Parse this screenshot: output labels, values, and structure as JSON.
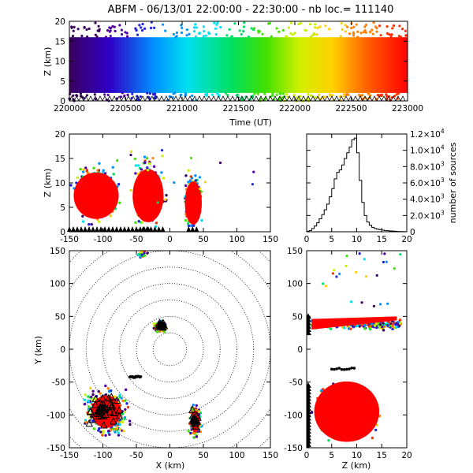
{
  "title": "ABFM - 06/13/01 22:00:00 - 22:30:00 - nb loc.= 111140",
  "colors": {
    "sources_late": "#ff0000",
    "markers": "#000000",
    "range_rings": "#000000",
    "histogram": "#000000"
  },
  "chart_data": [
    {
      "id": "time-height",
      "type": "scatter",
      "xlabel": "Time (UT)",
      "ylabel": "Z (km)",
      "xlim": [
        220000,
        223000
      ],
      "ylim": [
        0,
        20
      ],
      "xticks": [
        "220000",
        "220500",
        "221000",
        "221500",
        "222000",
        "222500",
        "223000"
      ],
      "yticks": [
        "0",
        "5",
        "10",
        "15",
        "20"
      ],
      "color_scale": "time, purple (22:00) to red (22:30)",
      "altitude_band_km": [
        2,
        16
      ]
    },
    {
      "id": "x-z",
      "type": "scatter",
      "xlabel": "",
      "ylabel": "Z (km)",
      "xlim": [
        -150,
        150
      ],
      "ylim": [
        0,
        20
      ],
      "xticks": [
        "-150",
        "-100",
        "-50",
        "0",
        "50",
        "100",
        "150"
      ],
      "yticks": [
        "0",
        "5",
        "10",
        "15",
        "20"
      ],
      "clusters": [
        {
          "x_range": [
            -150,
            -70
          ],
          "z_range": [
            2,
            16
          ]
        },
        {
          "x_range": [
            -60,
            -5
          ],
          "z_range": [
            1,
            17
          ]
        },
        {
          "x_range": [
            20,
            50
          ],
          "z_range": [
            1,
            14
          ]
        }
      ]
    },
    {
      "id": "altitude-histogram",
      "type": "line",
      "xlabel": "",
      "ylabel": "number of sources",
      "xlim": [
        0,
        20
      ],
      "ylim": [
        0,
        12000
      ],
      "xticks": [
        "0",
        "5",
        "10",
        "15",
        "20"
      ],
      "yticks": [
        "0",
        "2.0×10",
        "4.0×10",
        "6.0×10",
        "8.0×10",
        "1.0×10",
        "1.2×10"
      ],
      "ytick_exponents": [
        "",
        "3",
        "3",
        "3",
        "3",
        "4",
        "4"
      ],
      "x": [
        0,
        0.5,
        1,
        1.5,
        2,
        2.5,
        3,
        3.5,
        4,
        4.5,
        5,
        5.5,
        6,
        6.5,
        7,
        7.5,
        8,
        8.5,
        9,
        9.5,
        10,
        10.5,
        11,
        11.5,
        12,
        12.5,
        13,
        13.5,
        14,
        14.5,
        15,
        15.5,
        16,
        16.5,
        17,
        17.5,
        18,
        18.5,
        19,
        19.5
      ],
      "values": [
        60,
        150,
        400,
        700,
        1100,
        1600,
        2100,
        2700,
        3400,
        4300,
        5300,
        6500,
        7300,
        7600,
        8200,
        9000,
        9700,
        10400,
        11300,
        11500,
        9700,
        6300,
        3600,
        2000,
        1200,
        800,
        550,
        400,
        320,
        260,
        200,
        160,
        130,
        100,
        80,
        60,
        40,
        30,
        20,
        10
      ]
    },
    {
      "id": "plan-view",
      "type": "scatter",
      "xlabel": "X (km)",
      "ylabel": "Y (km)",
      "xlim": [
        -150,
        150
      ],
      "ylim": [
        -150,
        150
      ],
      "xticks": [
        "-150",
        "-100",
        "-50",
        "0",
        "50",
        "100",
        "150"
      ],
      "yticks": [
        "-150",
        "-100",
        "-50",
        "0",
        "50",
        "100",
        "150"
      ],
      "range_rings_km": [
        25,
        50,
        75,
        100,
        125,
        150,
        175,
        200
      ]
    },
    {
      "id": "z-y",
      "type": "scatter",
      "xlabel": "Z (km)",
      "ylabel": "",
      "xlim": [
        0,
        20
      ],
      "ylim": [
        -150,
        150
      ],
      "xticks": [
        "0",
        "5",
        "10",
        "15",
        "20"
      ],
      "yticks": [
        "-150",
        "-100",
        "-50",
        "0",
        "50",
        "100",
        "150"
      ]
    }
  ]
}
